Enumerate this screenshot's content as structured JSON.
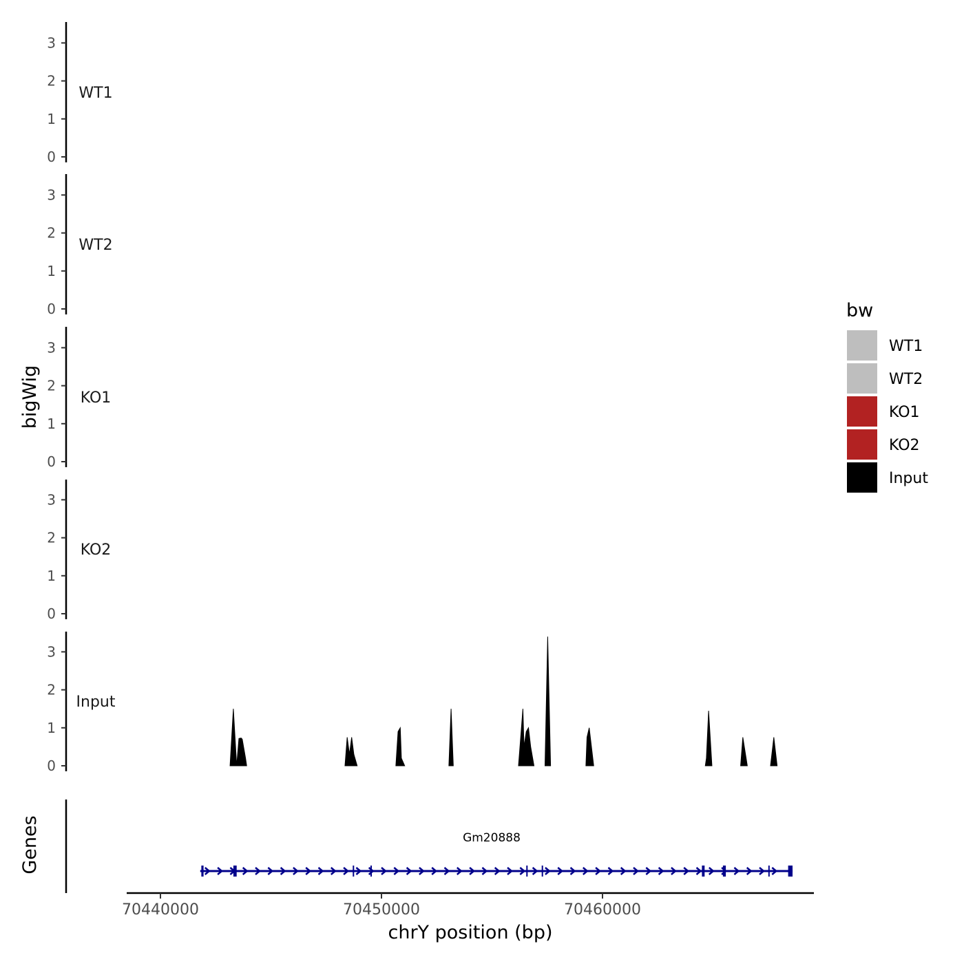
{
  "chart_data": {
    "type": "area",
    "ylabel": "bigWig",
    "xlabel": "chrY position (bp)",
    "y_ticks": [
      "0",
      "1",
      "2",
      "3"
    ],
    "ylim": [
      0,
      3.5
    ],
    "xlim": [
      70439500,
      70470000
    ],
    "x_ticks": [
      {
        "value": 70440000,
        "label": "70440000"
      },
      {
        "value": 70450000,
        "label": "70450000"
      },
      {
        "value": 70460000,
        "label": "70460000"
      }
    ],
    "tracks": [
      {
        "name": "WT1",
        "color": "#bebebe",
        "peaks": []
      },
      {
        "name": "WT2",
        "color": "#bebebe",
        "peaks": []
      },
      {
        "name": "KO1",
        "color": "#b22222",
        "peaks": []
      },
      {
        "name": "KO2",
        "color": "#b22222",
        "peaks": []
      },
      {
        "name": "Input",
        "color": "#000000",
        "peaks": [
          {
            "x": [
              70443150,
              70443300,
              70443450,
              70443550,
              70443650,
              70443700,
              70443850,
              70443900
            ],
            "y": [
              0,
              1.5,
              0,
              0.72,
              0.73,
              0.7,
              0.2,
              0
            ]
          },
          {
            "x": [
              70448350,
              70448450,
              70448550,
              70448650,
              70448750,
              70448900
            ],
            "y": [
              0,
              0.75,
              0.3,
              0.75,
              0.3,
              0
            ]
          },
          {
            "x": [
              70450650,
              70450750,
              70450850,
              70450900,
              70451050
            ],
            "y": [
              0,
              0.9,
              1.0,
              0.2,
              0
            ]
          },
          {
            "x": [
              70453050,
              70453150,
              70453250
            ],
            "y": [
              0,
              1.5,
              0
            ]
          },
          {
            "x": [
              70456200,
              70456400,
              70456450,
              70456550,
              70456650,
              70456750,
              70456900
            ],
            "y": [
              0,
              1.5,
              0.5,
              0.9,
              1.0,
              0.5,
              0
            ]
          },
          {
            "x": [
              70457400,
              70457520,
              70457650
            ],
            "y": [
              0,
              3.4,
              0
            ]
          },
          {
            "x": [
              70459250,
              70459300,
              70459400,
              70459600
            ],
            "y": [
              0,
              0.75,
              1.0,
              0
            ]
          },
          {
            "x": [
              70464650,
              70464700,
              70464800,
              70464950
            ],
            "y": [
              0,
              0.2,
              1.45,
              0
            ]
          },
          {
            "x": [
              70466250,
              70466350,
              70466550
            ],
            "y": [
              0,
              0.75,
              0
            ]
          },
          {
            "x": [
              70467600,
              70467750,
              70467900
            ],
            "y": [
              0,
              0.75,
              0
            ]
          }
        ]
      }
    ],
    "legend": {
      "title": "bw",
      "position": "right",
      "items": [
        {
          "label": "WT1",
          "color": "#bebebe"
        },
        {
          "label": "WT2",
          "color": "#bebebe"
        },
        {
          "label": "KO1",
          "color": "#b22222"
        },
        {
          "label": "KO2",
          "color": "#b22222"
        },
        {
          "label": "Input",
          "color": "#000000"
        }
      ]
    },
    "genes_panel": {
      "ylabel": "Genes",
      "gene_name": "Gm20888",
      "color": "#00008b",
      "start": 70441800,
      "end": 70468600,
      "exons": [
        {
          "start": 70441850,
          "end": 70441950
        },
        {
          "start": 70443300,
          "end": 70443450
        },
        {
          "start": 70448700,
          "end": 70448750
        },
        {
          "start": 70449500,
          "end": 70449550
        },
        {
          "start": 70456550,
          "end": 70456600
        },
        {
          "start": 70457250,
          "end": 70457290
        },
        {
          "start": 70464500,
          "end": 70464620
        },
        {
          "start": 70465450,
          "end": 70465580
        },
        {
          "start": 70467500,
          "end": 70467560
        },
        {
          "start": 70468400,
          "end": 70468600
        }
      ]
    }
  }
}
